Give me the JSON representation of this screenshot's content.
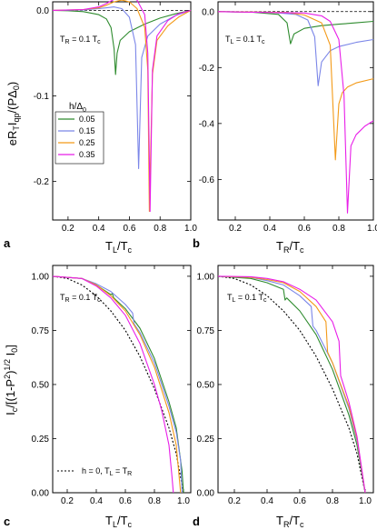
{
  "figure": {
    "panel_labels": [
      "a",
      "b",
      "c",
      "d"
    ],
    "ylabel_top": "eR_T I_qp / (P Δ_0)",
    "ylabel_bottom": "I_c / [(1-P^2)^1/2 I_0]",
    "legend_title": "h/Δ0"
  },
  "chart_data": [
    {
      "id": "a",
      "type": "line",
      "xlabel": "T_L / T_c",
      "ylabel": "eR_T I_qp / (P Δ_0)",
      "annotation": "T_R = 0.1 T_c",
      "xlim": [
        0.1,
        1.0
      ],
      "ylim": [
        -0.245,
        0.01
      ],
      "xticks": [
        "0.2",
        "0.4",
        "0.6",
        "0.8",
        "1.0"
      ],
      "yticks": [
        "0.0",
        "-0.1",
        "-0.2"
      ],
      "ytick_values": [
        0.0,
        -0.1,
        -0.2
      ],
      "legend": {
        "title": "h/Δ0",
        "placement": "center-left"
      },
      "zero_line": {
        "style": "dashed",
        "y": 0
      },
      "series": [
        {
          "name": "0.05",
          "color": "#2e8b2e",
          "x": [
            0.1,
            0.2,
            0.3,
            0.4,
            0.45,
            0.48,
            0.5,
            0.51,
            0.52,
            0.54,
            0.6,
            0.7,
            0.8,
            0.9,
            0.95,
            1.0
          ],
          "y": [
            0.0,
            -0.0004,
            -0.0015,
            -0.005,
            -0.01,
            -0.02,
            -0.045,
            -0.075,
            -0.05,
            -0.035,
            -0.025,
            -0.016,
            -0.009,
            -0.004,
            -0.002,
            0.0
          ]
        },
        {
          "name": "0.15",
          "color": "#7b86e8",
          "x": [
            0.1,
            0.3,
            0.4,
            0.45,
            0.5,
            0.55,
            0.6,
            0.64,
            0.66,
            0.68,
            0.72,
            0.8,
            0.9,
            1.0
          ],
          "y": [
            0.0,
            0.0005,
            0.002,
            0.003,
            0.004,
            0.002,
            -0.008,
            -0.04,
            -0.185,
            -0.055,
            -0.03,
            -0.016,
            -0.006,
            0.0
          ]
        },
        {
          "name": "0.25",
          "color": "#f39a18",
          "x": [
            0.1,
            0.3,
            0.4,
            0.45,
            0.5,
            0.55,
            0.6,
            0.65,
            0.7,
            0.72,
            0.73,
            0.75,
            0.78,
            0.85,
            0.92,
            1.0
          ],
          "y": [
            0.0,
            0.001,
            0.003,
            0.006,
            0.01,
            0.012,
            0.01,
            0.002,
            -0.02,
            -0.07,
            -0.235,
            -0.075,
            -0.035,
            -0.018,
            -0.008,
            0.0
          ]
        },
        {
          "name": "0.35",
          "color": "#e81ee8",
          "x": [
            0.1,
            0.3,
            0.4,
            0.45,
            0.5,
            0.55,
            0.6,
            0.65,
            0.7,
            0.72,
            0.735,
            0.75,
            0.78,
            0.85,
            0.92,
            1.0
          ],
          "y": [
            0.0,
            0.001,
            0.004,
            0.008,
            0.013,
            0.016,
            0.016,
            0.012,
            -0.005,
            -0.05,
            -0.235,
            -0.07,
            -0.03,
            -0.012,
            -0.004,
            0.0
          ]
        }
      ]
    },
    {
      "id": "b",
      "type": "line",
      "xlabel": "T_R / T_c",
      "annotation": "T_L = 0.1 T_c",
      "xlim": [
        0.1,
        1.0
      ],
      "ylim": [
        -0.745,
        0.035
      ],
      "xticks": [
        "0.2",
        "0.4",
        "0.6",
        "0.8",
        "1.0"
      ],
      "yticks": [
        "0.0",
        "-0.2",
        "-0.4",
        "-0.6"
      ],
      "ytick_values": [
        0.0,
        -0.2,
        -0.4,
        -0.6
      ],
      "zero_line": {
        "style": "dashed",
        "y": 0
      },
      "series": [
        {
          "name": "0.05",
          "color": "#2e8b2e",
          "x": [
            0.1,
            0.3,
            0.45,
            0.5,
            0.52,
            0.54,
            0.6,
            0.7,
            0.8,
            0.9,
            1.0
          ],
          "y": [
            0.0,
            -0.002,
            -0.01,
            -0.04,
            -0.115,
            -0.08,
            -0.06,
            -0.05,
            -0.045,
            -0.04,
            -0.035
          ]
        },
        {
          "name": "0.15",
          "color": "#7b86e8",
          "x": [
            0.1,
            0.4,
            0.55,
            0.62,
            0.66,
            0.68,
            0.7,
            0.75,
            0.8,
            0.9,
            1.0
          ],
          "y": [
            0.0,
            -0.002,
            -0.01,
            -0.03,
            -0.09,
            -0.265,
            -0.18,
            -0.14,
            -0.125,
            -0.11,
            -0.1
          ]
        },
        {
          "name": "0.25",
          "color": "#f39a18",
          "x": [
            0.1,
            0.5,
            0.6,
            0.7,
            0.75,
            0.78,
            0.8,
            0.82,
            0.85,
            0.9,
            1.0
          ],
          "y": [
            0.0,
            -0.003,
            -0.012,
            -0.04,
            -0.12,
            -0.53,
            -0.33,
            -0.29,
            -0.27,
            -0.255,
            -0.24
          ]
        },
        {
          "name": "0.35",
          "color": "#e81ee8",
          "x": [
            0.1,
            0.6,
            0.7,
            0.75,
            0.8,
            0.83,
            0.85,
            0.87,
            0.9,
            0.95,
            1.0
          ],
          "y": [
            0.0,
            -0.005,
            -0.015,
            -0.035,
            -0.1,
            -0.3,
            -0.72,
            -0.48,
            -0.44,
            -0.41,
            -0.39
          ]
        }
      ]
    },
    {
      "id": "c",
      "type": "line",
      "xlabel": "T_L / T_c",
      "ylabel": "I_c / [(1-P^2)^1/2 I_0]",
      "annotation": "T_R = 0.1 T_c",
      "reference_label": "h = 0, T_L = T_R",
      "xlim": [
        0.1,
        1.05
      ],
      "ylim": [
        0.0,
        1.05
      ],
      "xticks": [
        "0.2",
        "0.4",
        "0.6",
        "0.8",
        "1.0"
      ],
      "yticks": [
        "0.00",
        "0.25",
        "0.50",
        "0.75",
        "1.00"
      ],
      "ytick_values": [
        0.0,
        0.25,
        0.5,
        0.75,
        1.0
      ],
      "series": [
        {
          "name": "h = 0, T_L = T_R",
          "color": "#000000",
          "dash": "2,2",
          "x": [
            0.1,
            0.2,
            0.3,
            0.4,
            0.5,
            0.6,
            0.7,
            0.8,
            0.9,
            0.95,
            1.0
          ],
          "y": [
            1.0,
            0.99,
            0.96,
            0.91,
            0.84,
            0.75,
            0.63,
            0.48,
            0.3,
            0.18,
            0.0
          ]
        },
        {
          "name": "0.05",
          "color": "#2e8b2e",
          "x": [
            0.1,
            0.3,
            0.4,
            0.5,
            0.51,
            0.52,
            0.6,
            0.7,
            0.8,
            0.9,
            0.95,
            0.99,
            1.0
          ],
          "y": [
            1.0,
            0.99,
            0.96,
            0.915,
            0.92,
            0.9,
            0.85,
            0.76,
            0.62,
            0.42,
            0.3,
            0.1,
            0.0
          ]
        },
        {
          "name": "0.15",
          "color": "#7b86e8",
          "x": [
            0.1,
            0.3,
            0.4,
            0.5,
            0.6,
            0.65,
            0.66,
            0.7,
            0.8,
            0.9,
            0.95,
            0.98,
            0.99
          ],
          "y": [
            1.0,
            0.99,
            0.965,
            0.93,
            0.87,
            0.83,
            0.78,
            0.74,
            0.6,
            0.4,
            0.28,
            0.15,
            0.0
          ]
        },
        {
          "name": "0.25",
          "color": "#f39a18",
          "x": [
            0.1,
            0.3,
            0.4,
            0.5,
            0.6,
            0.7,
            0.8,
            0.9,
            0.95,
            0.98
          ],
          "y": [
            1.0,
            0.99,
            0.96,
            0.91,
            0.84,
            0.73,
            0.58,
            0.37,
            0.22,
            0.0
          ]
        },
        {
          "name": "0.35",
          "color": "#e81ee8",
          "x": [
            0.1,
            0.3,
            0.4,
            0.5,
            0.6,
            0.7,
            0.8,
            0.85,
            0.9,
            0.92,
            0.93
          ],
          "y": [
            1.0,
            0.99,
            0.955,
            0.9,
            0.82,
            0.69,
            0.5,
            0.38,
            0.22,
            0.08,
            0.0
          ]
        }
      ]
    },
    {
      "id": "d",
      "type": "line",
      "xlabel": "T_R / T_c",
      "annotation": "T_L = 0.1 T_c",
      "xlim": [
        0.1,
        1.05
      ],
      "ylim": [
        0.0,
        1.05
      ],
      "xticks": [
        "0.2",
        "0.4",
        "0.6",
        "0.8",
        "1.0"
      ],
      "yticks": [
        "0.00",
        "0.25",
        "0.50",
        "0.75",
        "1.00"
      ],
      "ytick_values": [
        0.0,
        0.25,
        0.5,
        0.75,
        1.0
      ],
      "series": [
        {
          "name": "h = 0, T_L = T_R",
          "color": "#000000",
          "dash": "2,2",
          "x": [
            0.1,
            0.2,
            0.3,
            0.4,
            0.5,
            0.6,
            0.7,
            0.8,
            0.9,
            0.95,
            1.0
          ],
          "y": [
            1.0,
            0.99,
            0.96,
            0.91,
            0.84,
            0.75,
            0.63,
            0.48,
            0.3,
            0.18,
            0.0
          ]
        },
        {
          "name": "0.05",
          "color": "#2e8b2e",
          "x": [
            0.1,
            0.3,
            0.4,
            0.5,
            0.51,
            0.52,
            0.6,
            0.7,
            0.8,
            0.9,
            0.95,
            1.0
          ],
          "y": [
            1.0,
            0.99,
            0.97,
            0.94,
            0.89,
            0.9,
            0.84,
            0.73,
            0.57,
            0.36,
            0.22,
            0.0
          ]
        },
        {
          "name": "0.15",
          "color": "#7b86e8",
          "x": [
            0.1,
            0.3,
            0.4,
            0.5,
            0.6,
            0.67,
            0.68,
            0.7,
            0.8,
            0.9,
            0.95,
            1.0
          ],
          "y": [
            1.0,
            0.995,
            0.98,
            0.96,
            0.91,
            0.86,
            0.77,
            0.75,
            0.6,
            0.39,
            0.24,
            0.0
          ]
        },
        {
          "name": "0.25",
          "color": "#f39a18",
          "x": [
            0.1,
            0.3,
            0.4,
            0.5,
            0.6,
            0.7,
            0.76,
            0.77,
            0.8,
            0.9,
            0.95,
            1.0
          ],
          "y": [
            1.0,
            0.995,
            0.985,
            0.97,
            0.93,
            0.86,
            0.79,
            0.65,
            0.6,
            0.4,
            0.25,
            0.0
          ]
        },
        {
          "name": "0.35",
          "color": "#e81ee8",
          "x": [
            0.1,
            0.3,
            0.4,
            0.5,
            0.6,
            0.7,
            0.8,
            0.84,
            0.85,
            0.9,
            0.95,
            1.0
          ],
          "y": [
            1.0,
            0.998,
            0.99,
            0.975,
            0.94,
            0.89,
            0.79,
            0.7,
            0.54,
            0.42,
            0.26,
            0.0
          ]
        }
      ]
    }
  ]
}
